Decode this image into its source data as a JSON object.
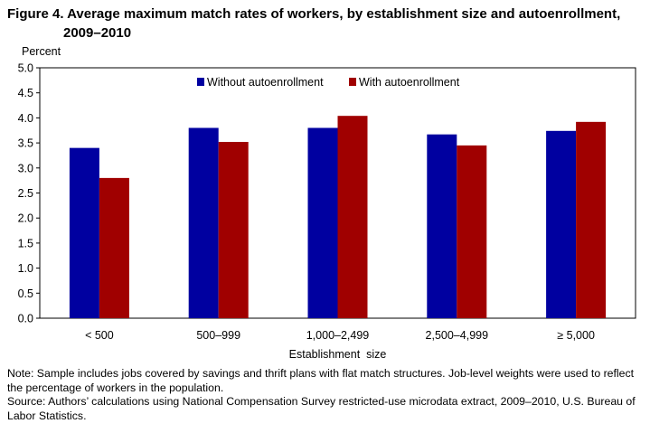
{
  "chart_data": {
    "type": "bar",
    "title_line1": "Figure 4. Average maximum match rates of workers, by establishment size and autoenrollment,",
    "title_line2": "2009–2010",
    "ylabel": "Percent",
    "xlabel": "Establishment  size",
    "ylim": [
      0,
      5.0
    ],
    "yticks": [
      "0.0",
      "0.5",
      "1.0",
      "1.5",
      "2.0",
      "2.5",
      "3.0",
      "3.5",
      "4.0",
      "4.5",
      "5.0"
    ],
    "categories": [
      "< 500",
      "500–999",
      "1,000–2,499",
      "2,500–4,999",
      "≥ 5,000"
    ],
    "series": [
      {
        "name": "Without autoenrollment",
        "color": "#0000A0",
        "values": [
          3.4,
          3.8,
          3.8,
          3.67,
          3.74
        ]
      },
      {
        "name": "With autoenrollment",
        "color": "#A00000",
        "values": [
          2.8,
          3.52,
          4.04,
          3.45,
          3.92
        ]
      }
    ],
    "legend_position": "top-center",
    "grid": false
  },
  "notes": {
    "note": "Note: Sample includes jobs covered by savings and thrift plans with flat match structures. Job-level weights were used to reflect the percentage of workers in the population.",
    "source": "Source: Authors’ calculations using National Compensation Survey restricted-use microdata extract, 2009–2010, U.S. Bureau of Labor Statistics."
  }
}
